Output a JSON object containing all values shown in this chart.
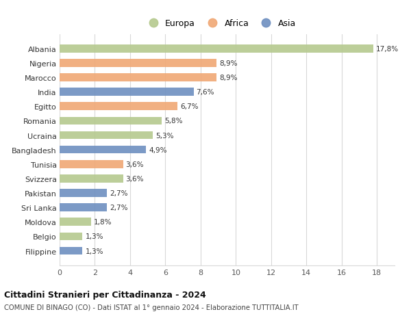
{
  "categories": [
    "Albania",
    "Nigeria",
    "Marocco",
    "India",
    "Egitto",
    "Romania",
    "Ucraina",
    "Bangladesh",
    "Tunisia",
    "Svizzera",
    "Pakistan",
    "Sri Lanka",
    "Moldova",
    "Belgio",
    "Filippine"
  ],
  "values": [
    17.8,
    8.9,
    8.9,
    7.6,
    6.7,
    5.8,
    5.3,
    4.9,
    3.6,
    3.6,
    2.7,
    2.7,
    1.8,
    1.3,
    1.3
  ],
  "labels": [
    "17,8%",
    "8,9%",
    "8,9%",
    "7,6%",
    "6,7%",
    "5,8%",
    "5,3%",
    "4,9%",
    "3,6%",
    "3,6%",
    "2,7%",
    "2,7%",
    "1,8%",
    "1,3%",
    "1,3%"
  ],
  "continents": [
    "Europa",
    "Africa",
    "Africa",
    "Asia",
    "Africa",
    "Europa",
    "Europa",
    "Asia",
    "Africa",
    "Europa",
    "Asia",
    "Asia",
    "Europa",
    "Europa",
    "Asia"
  ],
  "colors": {
    "Europa": "#b5c98e",
    "Africa": "#f0a875",
    "Asia": "#6e8fc0"
  },
  "xlim": [
    0,
    19
  ],
  "xticks": [
    0,
    2,
    4,
    6,
    8,
    10,
    12,
    14,
    16,
    18
  ],
  "title": "Cittadini Stranieri per Cittadinanza - 2024",
  "subtitle": "COMUNE DI BINAGO (CO) - Dati ISTAT al 1° gennaio 2024 - Elaborazione TUTTITALIA.IT",
  "background_color": "#ffffff",
  "grid_color": "#d8d8d8"
}
